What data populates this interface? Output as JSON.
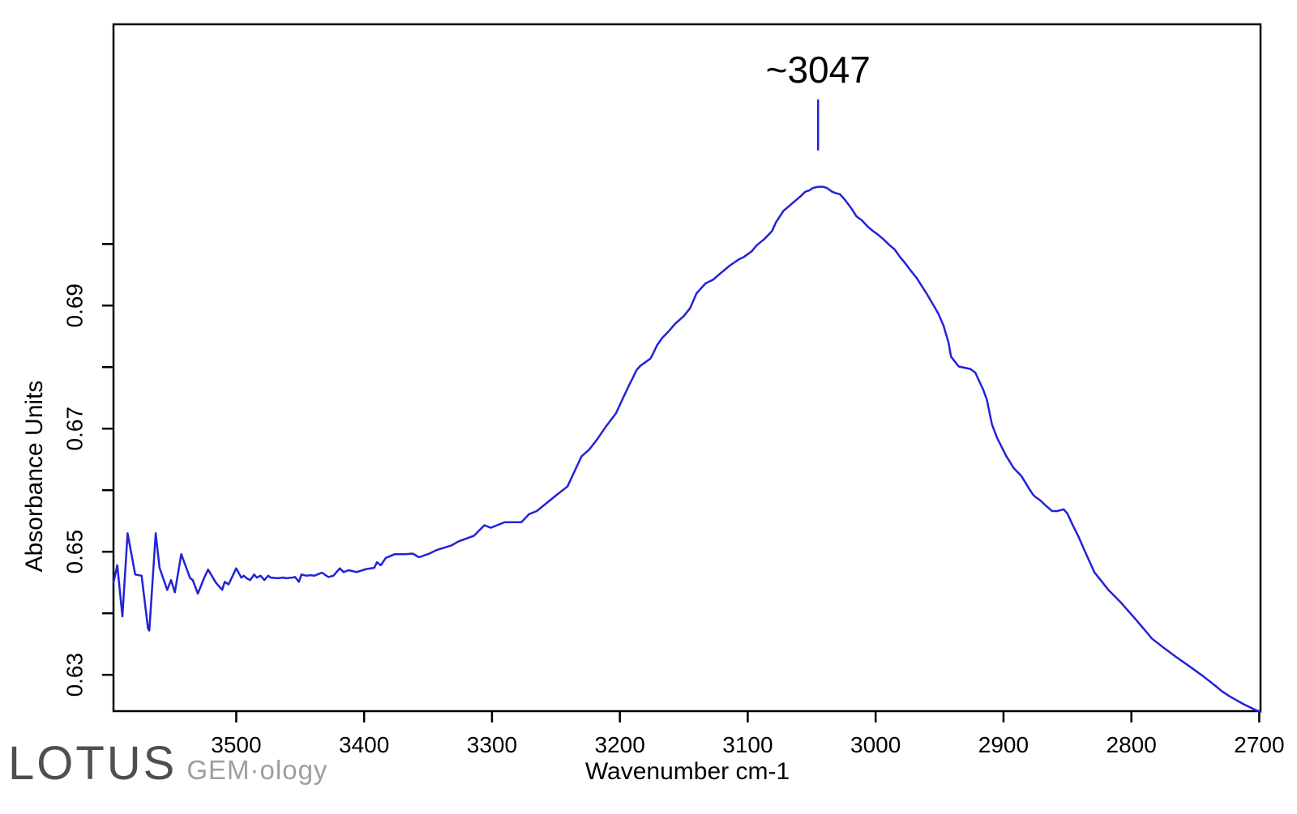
{
  "page": {
    "background": "#ffffff"
  },
  "logo": {
    "primary": "LOTUS",
    "secondary": "GEM·ology",
    "primary_color": "#4f4f51",
    "secondary_color": "#9e9e9e"
  },
  "chart_data": {
    "type": "line",
    "title": "",
    "xlabel": "Wavenumber cm-1",
    "ylabel": "Absorbance Units",
    "line_color": "#2222d8",
    "axis_color": "#000000",
    "grid": false,
    "legend": "none",
    "x_axis": {
      "left_value": 3596,
      "right_value": 2699,
      "reversed": true,
      "ticks": [
        3500,
        3400,
        3300,
        3200,
        3100,
        3000,
        2900,
        2800,
        2700
      ]
    },
    "y_axis": {
      "top_value": 0.7357,
      "bottom_value": 0.6241,
      "ticks": [
        0.63,
        0.64,
        0.65,
        0.66,
        0.67,
        0.68,
        0.69,
        0.7
      ],
      "labeled": [
        0.63,
        0.65,
        0.67,
        0.69
      ]
    },
    "annotation": {
      "label": "~3047",
      "x": 3045,
      "line_top": 0.7235,
      "line_bottom": 0.7152,
      "label_y": 0.7262
    },
    "series": [
      [
        3596,
        0.645
      ],
      [
        3593,
        0.6478
      ],
      [
        3589,
        0.6395
      ],
      [
        3585,
        0.653
      ],
      [
        3579,
        0.6463
      ],
      [
        3574,
        0.6461
      ],
      [
        3569,
        0.6375
      ],
      [
        3568,
        0.6372
      ],
      [
        3563,
        0.653
      ],
      [
        3560,
        0.6474
      ],
      [
        3554,
        0.6438
      ],
      [
        3551,
        0.6454
      ],
      [
        3548,
        0.6434
      ],
      [
        3543,
        0.6496
      ],
      [
        3536,
        0.6457
      ],
      [
        3534,
        0.6454
      ],
      [
        3530,
        0.6432
      ],
      [
        3525,
        0.6458
      ],
      [
        3522,
        0.6471
      ],
      [
        3516,
        0.645
      ],
      [
        3511,
        0.6438
      ],
      [
        3509,
        0.6451
      ],
      [
        3506,
        0.6447
      ],
      [
        3500,
        0.6473
      ],
      [
        3496,
        0.6458
      ],
      [
        3494,
        0.6461
      ],
      [
        3492,
        0.6457
      ],
      [
        3489,
        0.6454
      ],
      [
        3486,
        0.6463
      ],
      [
        3484,
        0.6458
      ],
      [
        3481,
        0.6461
      ],
      [
        3478,
        0.6454
      ],
      [
        3475,
        0.6461
      ],
      [
        3473,
        0.6458
      ],
      [
        3468,
        0.6457
      ],
      [
        3463,
        0.6458
      ],
      [
        3461,
        0.6457
      ],
      [
        3456,
        0.6458
      ],
      [
        3454,
        0.6459
      ],
      [
        3451,
        0.6451
      ],
      [
        3449,
        0.6463
      ],
      [
        3445,
        0.6461
      ],
      [
        3442,
        0.6462
      ],
      [
        3439,
        0.6461
      ],
      [
        3433,
        0.6466
      ],
      [
        3428,
        0.6459
      ],
      [
        3424,
        0.6461
      ],
      [
        3419,
        0.6473
      ],
      [
        3416,
        0.6467
      ],
      [
        3412,
        0.647
      ],
      [
        3406,
        0.6467
      ],
      [
        3398,
        0.6472
      ],
      [
        3392,
        0.6474
      ],
      [
        3390,
        0.6483
      ],
      [
        3387,
        0.6478
      ],
      [
        3383,
        0.649
      ],
      [
        3376,
        0.6496
      ],
      [
        3368,
        0.6496
      ],
      [
        3362,
        0.6497
      ],
      [
        3357,
        0.6491
      ],
      [
        3349,
        0.6497
      ],
      [
        3343,
        0.6503
      ],
      [
        3332,
        0.651
      ],
      [
        3326,
        0.6517
      ],
      [
        3314,
        0.6526
      ],
      [
        3306,
        0.6543
      ],
      [
        3301,
        0.6539
      ],
      [
        3290,
        0.6548
      ],
      [
        3277,
        0.6548
      ],
      [
        3271,
        0.6561
      ],
      [
        3265,
        0.6566
      ],
      [
        3249,
        0.6593
      ],
      [
        3241,
        0.6606
      ],
      [
        3230,
        0.6655
      ],
      [
        3224,
        0.6666
      ],
      [
        3218,
        0.6682
      ],
      [
        3211,
        0.6703
      ],
      [
        3203,
        0.6725
      ],
      [
        3197,
        0.6752
      ],
      [
        3192,
        0.6774
      ],
      [
        3190,
        0.6782
      ],
      [
        3187,
        0.6795
      ],
      [
        3184,
        0.6802
      ],
      [
        3180,
        0.6808
      ],
      [
        3176,
        0.6814
      ],
      [
        3174,
        0.6822
      ],
      [
        3171,
        0.6835
      ],
      [
        3167,
        0.6847
      ],
      [
        3161,
        0.686
      ],
      [
        3157,
        0.687
      ],
      [
        3150,
        0.6883
      ],
      [
        3145,
        0.6896
      ],
      [
        3140,
        0.692
      ],
      [
        3133,
        0.6936
      ],
      [
        3127,
        0.6942
      ],
      [
        3121,
        0.6953
      ],
      [
        3114,
        0.6965
      ],
      [
        3107,
        0.6975
      ],
      [
        3103,
        0.6979
      ],
      [
        3097,
        0.6988
      ],
      [
        3093,
        0.6998
      ],
      [
        3087,
        0.7008
      ],
      [
        3081,
        0.7021
      ],
      [
        3078,
        0.7035
      ],
      [
        3072,
        0.7054
      ],
      [
        3068,
        0.7061
      ],
      [
        3063,
        0.707
      ],
      [
        3059,
        0.7077
      ],
      [
        3055,
        0.7085
      ],
      [
        3052,
        0.7087
      ],
      [
        3049,
        0.7091
      ],
      [
        3045,
        0.7093
      ],
      [
        3041,
        0.7093
      ],
      [
        3038,
        0.7091
      ],
      [
        3034,
        0.7085
      ],
      [
        3030,
        0.7082
      ],
      [
        3028,
        0.7081
      ],
      [
        3024,
        0.7072
      ],
      [
        3019,
        0.7058
      ],
      [
        3015,
        0.7045
      ],
      [
        3011,
        0.7039
      ],
      [
        3006,
        0.7028
      ],
      [
        3002,
        0.7021
      ],
      [
        2998,
        0.7015
      ],
      [
        2994,
        0.7008
      ],
      [
        2989,
        0.6998
      ],
      [
        2985,
        0.6991
      ],
      [
        2981,
        0.6979
      ],
      [
        2977,
        0.6969
      ],
      [
        2973,
        0.6958
      ],
      [
        2968,
        0.6945
      ],
      [
        2964,
        0.6932
      ],
      [
        2960,
        0.6919
      ],
      [
        2956,
        0.6905
      ],
      [
        2951,
        0.6887
      ],
      [
        2947,
        0.6868
      ],
      [
        2943,
        0.684
      ],
      [
        2941,
        0.6817
      ],
      [
        2935,
        0.6801
      ],
      [
        2926,
        0.6797
      ],
      [
        2922,
        0.6791
      ],
      [
        2916,
        0.6764
      ],
      [
        2913,
        0.6747
      ],
      [
        2909,
        0.6707
      ],
      [
        2905,
        0.6685
      ],
      [
        2898,
        0.6656
      ],
      [
        2892,
        0.6636
      ],
      [
        2886,
        0.6623
      ],
      [
        2881,
        0.6606
      ],
      [
        2877,
        0.6593
      ],
      [
        2875,
        0.6589
      ],
      [
        2871,
        0.6583
      ],
      [
        2867,
        0.6575
      ],
      [
        2862,
        0.6566
      ],
      [
        2858,
        0.6566
      ],
      [
        2853,
        0.6569
      ],
      [
        2850,
        0.6562
      ],
      [
        2846,
        0.6544
      ],
      [
        2841,
        0.6523
      ],
      [
        2837,
        0.6504
      ],
      [
        2829,
        0.6467
      ],
      [
        2818,
        0.6438
      ],
      [
        2808,
        0.6417
      ],
      [
        2797,
        0.6391
      ],
      [
        2786,
        0.6364
      ],
      [
        2784,
        0.6359
      ],
      [
        2776,
        0.6346
      ],
      [
        2765,
        0.6329
      ],
      [
        2754,
        0.6313
      ],
      [
        2744,
        0.6298
      ],
      [
        2733,
        0.628
      ],
      [
        2729,
        0.6273
      ],
      [
        2723,
        0.6265
      ],
      [
        2712,
        0.6252
      ],
      [
        2703,
        0.6243
      ],
      [
        2699,
        0.624
      ]
    ]
  }
}
